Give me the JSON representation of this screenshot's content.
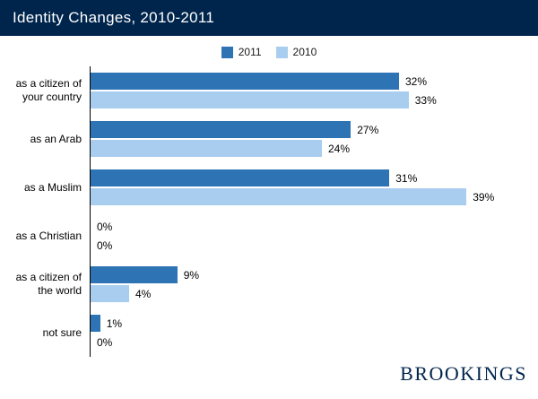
{
  "header": {
    "title": "Identity Changes, 2010-2011"
  },
  "brand": {
    "wordmark": "BROOKINGS"
  },
  "colors": {
    "header_bg": "#00254d",
    "series_2011": "#2e74b5",
    "series_2010": "#a9cdee",
    "axis": "#000000"
  },
  "chart_data": {
    "type": "bar",
    "orientation": "horizontal",
    "title": "Identity Changes, 2010-2011",
    "categories": [
      "as a citizen of your country",
      "as an Arab",
      "as a Muslim",
      "as a Christian",
      "as a citizen of the world",
      "not sure"
    ],
    "series": [
      {
        "name": "2011",
        "values": [
          32,
          27,
          31,
          0,
          9,
          1
        ]
      },
      {
        "name": "2010",
        "values": [
          33,
          24,
          39,
          0,
          4,
          0
        ]
      }
    ],
    "value_suffix": "%",
    "xlim": [
      0,
      40
    ],
    "legend_position": "top",
    "grid": false
  }
}
